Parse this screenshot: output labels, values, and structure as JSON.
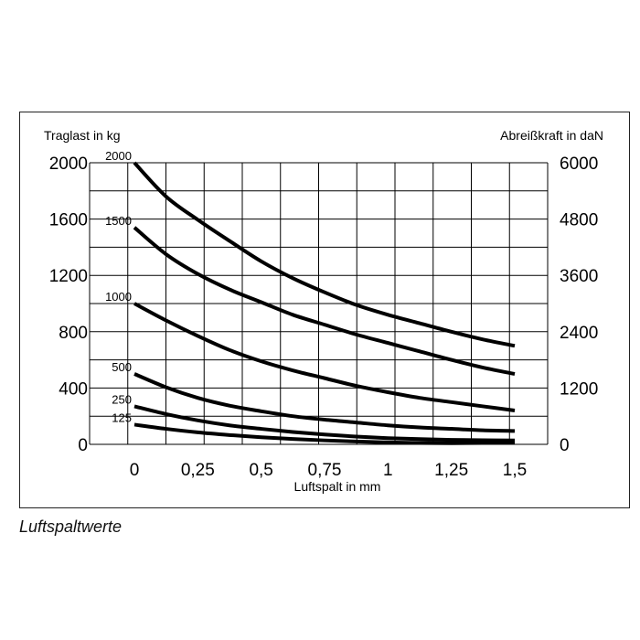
{
  "caption": "Luftspaltwerte",
  "chart_data": {
    "type": "line",
    "xlabel": "Luftspalt in mm",
    "ylabel": "Traglast in kg",
    "y2label": "Abreißkraft in daN",
    "xlim": [
      0,
      1.5
    ],
    "ylim": [
      0,
      2000
    ],
    "y2lim": [
      0,
      6000
    ],
    "grid": true,
    "x_ticks": [
      0,
      0.25,
      0.5,
      0.75,
      1,
      1.25,
      1.5
    ],
    "x_tick_labels": [
      "0",
      "0,25",
      "0,5",
      "0,75",
      "1",
      "1,25",
      "1,5"
    ],
    "y_ticks": [
      0,
      400,
      800,
      1200,
      1600,
      2000
    ],
    "y_tick_labels": [
      "0",
      "400",
      "800",
      "1200",
      "1600",
      "2000"
    ],
    "y2_ticks": [
      0,
      1200,
      2400,
      3600,
      4800,
      6000
    ],
    "y2_tick_labels": [
      "0",
      "1200",
      "2400",
      "3600",
      "4800",
      "6000"
    ],
    "series": [
      {
        "name": "2000",
        "x": [
          0,
          0.125,
          0.25,
          0.375,
          0.5,
          0.625,
          0.75,
          0.875,
          1,
          1.125,
          1.25,
          1.375,
          1.5
        ],
        "values": [
          2000,
          1760,
          1595,
          1445,
          1300,
          1180,
          1080,
          990,
          920,
          860,
          800,
          745,
          700
        ]
      },
      {
        "name": "1500",
        "x": [
          0,
          0.125,
          0.25,
          0.375,
          0.5,
          0.625,
          0.75,
          0.875,
          1,
          1.125,
          1.25,
          1.375,
          1.5
        ],
        "values": [
          1540,
          1350,
          1210,
          1100,
          1010,
          920,
          850,
          780,
          720,
          660,
          600,
          545,
          500
        ]
      },
      {
        "name": "1000",
        "x": [
          0,
          0.125,
          0.25,
          0.375,
          0.5,
          0.625,
          0.75,
          0.875,
          1,
          1.125,
          1.25,
          1.375,
          1.5
        ],
        "values": [
          1000,
          880,
          770,
          670,
          590,
          525,
          470,
          415,
          370,
          330,
          300,
          270,
          240
        ]
      },
      {
        "name": "500",
        "x": [
          0,
          0.125,
          0.25,
          0.375,
          0.5,
          0.625,
          0.75,
          0.875,
          1,
          1.125,
          1.25,
          1.375,
          1.5
        ],
        "values": [
          500,
          405,
          330,
          275,
          235,
          200,
          175,
          155,
          135,
          120,
          110,
          100,
          95
        ]
      },
      {
        "name": "250",
        "x": [
          0,
          0.125,
          0.25,
          0.375,
          0.5,
          0.625,
          0.75,
          0.875,
          1,
          1.125,
          1.25,
          1.375,
          1.5
        ],
        "values": [
          270,
          215,
          170,
          135,
          110,
          88,
          70,
          55,
          44,
          37,
          32,
          29,
          28
        ]
      },
      {
        "name": "125",
        "x": [
          0,
          0.125,
          0.25,
          0.375,
          0.5,
          0.625,
          0.75,
          0.875,
          1,
          1.125,
          1.25,
          1.375,
          1.5
        ],
        "values": [
          140,
          110,
          85,
          66,
          50,
          38,
          28,
          20,
          14,
          10,
          8,
          10,
          15
        ]
      }
    ]
  }
}
